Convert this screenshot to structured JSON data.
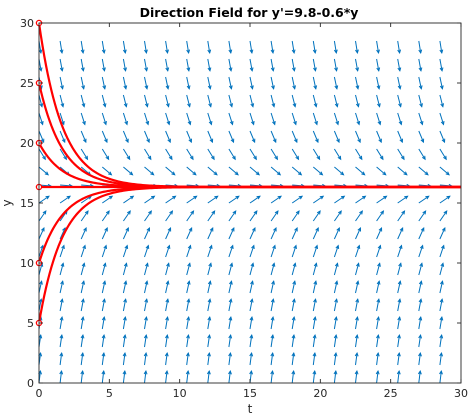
{
  "chart_data": {
    "type": "line",
    "title": "Direction Field for y'=9.8-0.6*y",
    "xlabel": "t",
    "ylabel": "y",
    "xlim": [
      0,
      30
    ],
    "ylim": [
      0,
      30
    ],
    "x_ticks": [
      0,
      5,
      10,
      15,
      20,
      25,
      30
    ],
    "y_ticks": [
      0,
      5,
      10,
      15,
      20,
      25,
      30
    ],
    "grid": false,
    "equation": {
      "a": 9.8,
      "b": 0.6
    },
    "direction_field": {
      "t_values": [
        0,
        1.5,
        3,
        4.5,
        6,
        7.5,
        9,
        10.5,
        12,
        13.5,
        15,
        16.5,
        18,
        19.5,
        21,
        22.5,
        24,
        25.5,
        27,
        28.5
      ],
      "y_values": [
        0,
        1.5,
        3,
        4.5,
        6,
        7.5,
        9,
        10.5,
        12,
        13.5,
        15,
        16.5,
        18,
        19.5,
        21,
        22.5,
        24,
        25.5,
        27,
        28.5
      ],
      "color": "#0072BD"
    },
    "series": [
      {
        "y0": 5,
        "t_end": 30,
        "color": "#FF0000"
      },
      {
        "y0": 10,
        "t_end": 30,
        "color": "#FF0000"
      },
      {
        "y0": 16.333,
        "t_end": 30,
        "color": "#FF0000"
      },
      {
        "y0": 20,
        "t_end": 30,
        "color": "#FF0000"
      },
      {
        "y0": 25,
        "t_end": 30,
        "color": "#FF0000"
      },
      {
        "y0": 30,
        "t_end": 30,
        "color": "#FF0000"
      }
    ]
  }
}
